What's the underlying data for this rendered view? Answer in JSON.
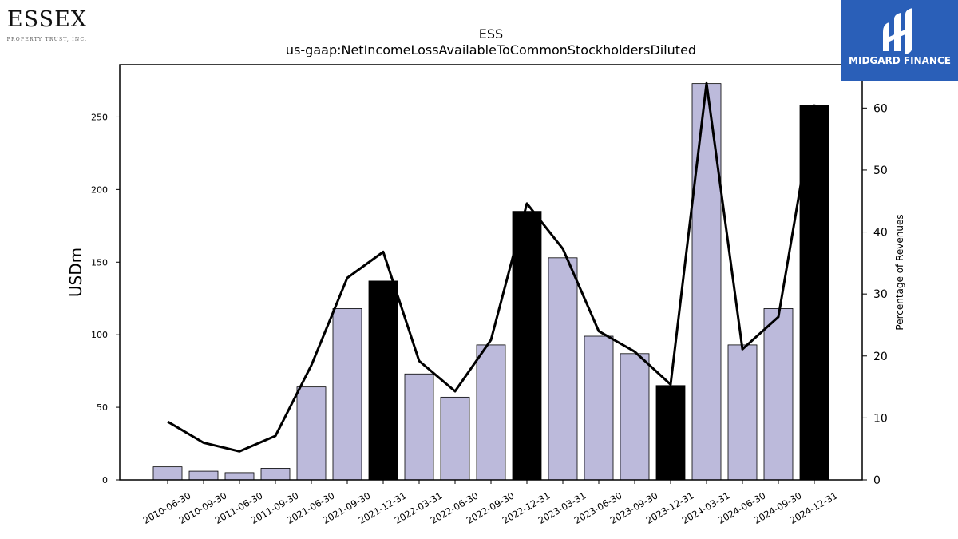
{
  "logos": {
    "company": {
      "name": "ESSEX",
      "tagline": "PROPERTY TRUST, INC."
    },
    "publisher": {
      "name": "MIDGARD FINANCE",
      "color": "#2a5fb8"
    }
  },
  "chart_data": {
    "type": "bar",
    "title": "ESS",
    "subtitle": "us-gaap:NetIncomeLossAvailableToCommonStockholdersDiluted",
    "ylabel": "USDm",
    "y2label": "Percentage of Revenues",
    "ylim": [
      0,
      286
    ],
    "y2lim": [
      0,
      67
    ],
    "yticks": [
      0,
      50,
      100,
      150,
      200,
      250
    ],
    "y2ticks": [
      0,
      10,
      20,
      30,
      40,
      50,
      60
    ],
    "grid": false,
    "categories": [
      "2010-06-30",
      "2010-09-30",
      "2011-06-30",
      "2011-09-30",
      "2021-06-30",
      "2021-09-30",
      "2021-12-31",
      "2022-03-31",
      "2022-06-30",
      "2022-09-30",
      "2022-12-31",
      "2023-03-31",
      "2023-06-30",
      "2023-09-30",
      "2023-12-31",
      "2024-03-31",
      "2024-06-30",
      "2024-09-30",
      "2024-12-31"
    ],
    "series": [
      {
        "type": "bar",
        "axis": "left",
        "values": [
          9,
          6,
          5,
          8,
          64,
          118,
          137,
          73,
          57,
          93,
          185,
          153,
          99,
          87,
          65,
          273,
          93,
          118,
          258
        ],
        "highlight": [
          false,
          false,
          false,
          false,
          false,
          false,
          true,
          false,
          false,
          false,
          true,
          false,
          false,
          false,
          true,
          false,
          false,
          false,
          true
        ]
      },
      {
        "type": "line",
        "axis": "right",
        "values": [
          9.4,
          6.0,
          4.6,
          7.1,
          18.5,
          32.6,
          36.8,
          19.2,
          14.3,
          22.6,
          44.6,
          37.3,
          24.0,
          20.7,
          15.4,
          64.0,
          21.1,
          26.3,
          60.6
        ]
      }
    ],
    "colors": {
      "bar": "#bcbadb",
      "bar_highlight": "#000000",
      "bar_edge": "#000000",
      "line": "#000000"
    }
  }
}
